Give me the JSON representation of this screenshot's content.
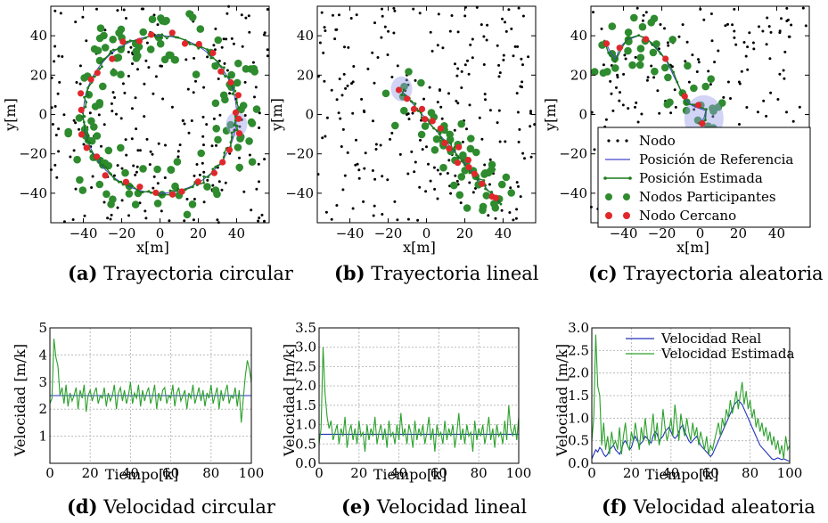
{
  "captions": [
    {
      "tag": "(a)",
      "text": "Trayectoria circular"
    },
    {
      "tag": "(b)",
      "text": "Trayectoria lineal"
    },
    {
      "tag": "(c)",
      "text": "Trayectoria aleatoria"
    },
    {
      "tag": "(d)",
      "text": "Velocidad circular"
    },
    {
      "tag": "(e)",
      "text": "Velocidad lineal"
    },
    {
      "tag": "(f)",
      "text": "Velocidad aleatoria"
    }
  ],
  "colors": {
    "nodo": "#000000",
    "referencia": "#4444cc",
    "estimada": "#1a7a1a",
    "participantes": "#2e8b2e",
    "cercano": "#e0282c",
    "vel_real": "#2233bb",
    "vel_estimada": "#2ca02c",
    "grid": "#bbbbbb"
  },
  "chart_data": [
    {
      "type": "scatter",
      "xlabel": "x[m]",
      "ylabel": "y[m]",
      "xlim": [
        -57,
        57
      ],
      "ylim": [
        -55,
        55
      ],
      "xticks": [
        -40,
        -20,
        0,
        20,
        40
      ],
      "yticks": [
        -40,
        -20,
        0,
        20,
        40
      ],
      "trajectory": "circle",
      "radius": 40,
      "center": [
        0,
        0
      ],
      "nodes_visible_count": 330
    },
    {
      "type": "scatter",
      "xlabel": "x[m]",
      "ylabel": "y[m]",
      "xlim": [
        -57,
        57
      ],
      "ylim": [
        -55,
        55
      ],
      "xticks": [
        -40,
        -20,
        0,
        20,
        40
      ],
      "yticks": [
        -40,
        -20,
        0,
        20,
        40
      ],
      "trajectory": "line",
      "line_start": [
        -13,
        12
      ],
      "line_end": [
        38,
        -45
      ]
    },
    {
      "type": "scatter",
      "xlabel": "x[m]",
      "ylabel": "y[m]",
      "xlim": [
        -57,
        57
      ],
      "ylim": [
        -55,
        55
      ],
      "xticks": [
        -40,
        -20,
        0,
        20,
        40
      ],
      "yticks": [
        -40,
        -20,
        0,
        20,
        40
      ],
      "trajectory": "random",
      "path": [
        [
          -50,
          38
        ],
        [
          -47,
          32
        ],
        [
          -44,
          28
        ],
        [
          -42,
          34
        ],
        [
          -38,
          38
        ],
        [
          -32,
          40
        ],
        [
          -28,
          39
        ],
        [
          -25,
          36
        ],
        [
          -21,
          32
        ],
        [
          -18,
          28
        ],
        [
          -15,
          22
        ],
        [
          -12,
          16
        ],
        [
          -9,
          10
        ],
        [
          -6,
          6
        ],
        [
          -3,
          4
        ],
        [
          0,
          3
        ],
        [
          3,
          2
        ],
        [
          2,
          -2
        ],
        [
          0,
          -4
        ]
      ],
      "legend": {
        "position": "lower-right",
        "entries": [
          {
            "label": "Nodo",
            "marker": "dot"
          },
          {
            "label": "Posición de Referencia",
            "marker": "line"
          },
          {
            "label": "Posición Estimada",
            "marker": "line-dot"
          },
          {
            "label": "Nodos Participantes",
            "marker": "circle-green"
          },
          {
            "label": "Nodo Cercano",
            "marker": "circle-red"
          }
        ]
      }
    },
    {
      "type": "line",
      "xlabel": "Tiempo[k]",
      "ylabel": "Velocidad [m/k]",
      "xlim": [
        0,
        100
      ],
      "ylim": [
        0,
        5
      ],
      "xticks": [
        0,
        20,
        40,
        60,
        80,
        100
      ],
      "yticks": [
        1,
        2,
        3,
        4,
        5
      ],
      "x": [
        0,
        1,
        2,
        3,
        4,
        5,
        6,
        7,
        8,
        9,
        10,
        11,
        12,
        13,
        14,
        15,
        16,
        17,
        18,
        19,
        20,
        21,
        22,
        23,
        24,
        25,
        26,
        27,
        28,
        29,
        30,
        31,
        32,
        33,
        34,
        35,
        36,
        37,
        38,
        39,
        40,
        41,
        42,
        43,
        44,
        45,
        46,
        47,
        48,
        49,
        50,
        51,
        52,
        53,
        54,
        55,
        56,
        57,
        58,
        59,
        60,
        61,
        62,
        63,
        64,
        65,
        66,
        67,
        68,
        69,
        70,
        71,
        72,
        73,
        74,
        75,
        76,
        77,
        78,
        79,
        80,
        81,
        82,
        83,
        84,
        85,
        86,
        87,
        88,
        89,
        90,
        91,
        92,
        93,
        94,
        95,
        96,
        97,
        98,
        99,
        100
      ],
      "series": [
        {
          "name": "Velocidad Real",
          "values_constant": 2.5
        },
        {
          "name": "Velocidad Estimada",
          "values": [
            2.2,
            2.4,
            4.6,
            3.9,
            3.6,
            2.5,
            2.8,
            2.2,
            2.9,
            2.1,
            2.6,
            2.3,
            2.5,
            2.8,
            2.0,
            2.7,
            2.4,
            2.9,
            1.9,
            2.5,
            2.7,
            2.3,
            2.6,
            2.8,
            2.2,
            2.5,
            2.4,
            2.8,
            2.1,
            2.6,
            2.3,
            2.5,
            2.9,
            2.0,
            2.6,
            2.8,
            2.3,
            2.7,
            2.2,
            2.5,
            3.0,
            2.2,
            2.6,
            2.4,
            2.9,
            2.1,
            2.7,
            2.3,
            2.6,
            2.8,
            2.2,
            2.5,
            2.9,
            2.0,
            2.6,
            2.3,
            2.7,
            2.8,
            2.2,
            2.5,
            2.4,
            2.9,
            2.1,
            2.6,
            2.8,
            2.3,
            2.5,
            2.7,
            2.0,
            2.6,
            2.4,
            2.9,
            2.2,
            2.5,
            2.8,
            2.3,
            2.7,
            2.1,
            2.6,
            2.4,
            2.9,
            2.2,
            2.5,
            2.8,
            2.0,
            2.7,
            2.3,
            2.6,
            2.9,
            2.2,
            2.5,
            2.4,
            2.8,
            2.1,
            2.7,
            1.5,
            2.4,
            3.2,
            3.8,
            3.5,
            3.0
          ]
        }
      ]
    },
    {
      "type": "line",
      "xlabel": "Tiempo[k]",
      "ylabel": "Velocidad [m/k]",
      "xlim": [
        0,
        100
      ],
      "ylim": [
        0,
        3.5
      ],
      "xticks": [
        0,
        20,
        40,
        60,
        80,
        100
      ],
      "yticks": [
        0.0,
        0.5,
        1.0,
        1.5,
        2.0,
        2.5,
        3.0,
        3.5
      ],
      "series": [
        {
          "name": "Velocidad Real",
          "values_constant": 0.75
        },
        {
          "name": "Velocidad Estimada",
          "values": [
            0.5,
            0.9,
            3.0,
            1.8,
            1.2,
            0.9,
            1.1,
            0.6,
            0.8,
            1.0,
            0.5,
            0.9,
            0.7,
            1.2,
            0.4,
            0.8,
            1.0,
            0.6,
            0.9,
            0.5,
            1.1,
            0.7,
            0.8,
            0.3,
            1.0,
            0.6,
            0.9,
            0.7,
            1.2,
            0.5,
            0.8,
            1.0,
            0.6,
            0.9,
            0.4,
            1.1,
            0.7,
            0.8,
            0.5,
            1.0,
            0.6,
            1.3,
            0.7,
            0.9,
            0.5,
            1.0,
            0.8,
            0.4,
            1.1,
            0.6,
            0.9,
            0.7,
            1.0,
            0.5,
            0.8,
            1.2,
            0.6,
            0.9,
            0.3,
            1.0,
            0.7,
            0.8,
            0.5,
            1.1,
            0.6,
            0.9,
            0.7,
            1.0,
            0.4,
            0.8,
            1.3,
            0.6,
            0.9,
            0.5,
            1.0,
            0.7,
            0.8,
            0.3,
            1.1,
            0.6,
            0.9,
            0.7,
            1.0,
            0.5,
            0.8,
            1.2,
            0.6,
            0.9,
            0.4,
            1.0,
            0.7,
            0.8,
            0.5,
            1.1,
            0.6,
            1.5,
            0.9,
            0.7,
            1.0,
            0.6,
            1.2
          ]
        }
      ]
    },
    {
      "type": "line",
      "xlabel": "Tiempo[k]",
      "ylabel": "Velocidad [m/k]",
      "xlim": [
        0,
        100
      ],
      "ylim": [
        0,
        3.0
      ],
      "xticks": [
        0,
        20,
        40,
        60,
        80,
        100
      ],
      "yticks": [
        0.0,
        0.5,
        1.0,
        1.5,
        2.0,
        2.5,
        3.0
      ],
      "legend": {
        "position": "top-right",
        "entries": [
          "Velocidad Real",
          "Velocidad Estimada"
        ]
      },
      "series": [
        {
          "name": "Velocidad Real",
          "values": [
            0.1,
            0.2,
            0.3,
            0.25,
            0.35,
            0.3,
            0.2,
            0.15,
            0.2,
            0.3,
            0.35,
            0.4,
            0.3,
            0.25,
            0.2,
            0.3,
            0.45,
            0.5,
            0.4,
            0.3,
            0.35,
            0.5,
            0.6,
            0.5,
            0.4,
            0.45,
            0.5,
            0.6,
            0.55,
            0.5,
            0.45,
            0.6,
            0.7,
            0.65,
            0.5,
            0.55,
            0.6,
            0.7,
            0.75,
            0.8,
            0.7,
            0.6,
            0.55,
            0.6,
            0.7,
            0.8,
            0.85,
            0.7,
            0.6,
            0.5,
            0.45,
            0.5,
            0.55,
            0.6,
            0.5,
            0.4,
            0.35,
            0.3,
            0.25,
            0.2,
            0.15,
            0.2,
            0.3,
            0.4,
            0.5,
            0.6,
            0.7,
            0.8,
            0.9,
            1.0,
            1.1,
            1.2,
            1.3,
            1.35,
            1.4,
            1.35,
            1.3,
            1.2,
            1.1,
            1.0,
            0.9,
            0.8,
            0.7,
            0.6,
            0.5,
            0.4,
            0.35,
            0.3,
            0.25,
            0.2,
            0.15,
            0.1,
            0.08,
            0.1,
            0.12,
            0.1,
            0.08,
            0.1,
            0.08,
            0.06,
            0.05
          ]
        },
        {
          "name": "Velocidad Estimada",
          "values": [
            0.5,
            1.0,
            2.85,
            1.7,
            1.5,
            0.4,
            0.9,
            0.3,
            0.6,
            0.2,
            0.7,
            0.4,
            0.5,
            0.3,
            0.8,
            0.2,
            0.6,
            0.9,
            0.4,
            0.3,
            0.7,
            0.5,
            0.9,
            0.6,
            0.3,
            0.8,
            0.5,
            1.0,
            0.6,
            0.4,
            0.7,
            1.1,
            0.5,
            0.9,
            0.4,
            0.6,
            1.2,
            0.8,
            0.5,
            0.7,
            1.0,
            0.6,
            1.3,
            0.9,
            0.5,
            1.1,
            0.8,
            0.6,
            1.0,
            0.7,
            0.5,
            0.9,
            0.6,
            0.8,
            0.4,
            0.7,
            0.5,
            0.3,
            0.6,
            0.2,
            0.4,
            0.3,
            0.5,
            0.7,
            0.9,
            0.6,
            1.0,
            0.8,
            1.2,
            1.0,
            1.4,
            1.1,
            1.3,
            1.6,
            1.2,
            1.5,
            1.8,
            1.3,
            1.6,
            1.2,
            1.4,
            1.0,
            1.2,
            0.8,
            1.0,
            0.7,
            0.9,
            0.6,
            0.8,
            0.5,
            0.7,
            0.4,
            0.6,
            0.3,
            0.5,
            0.2,
            0.4,
            0.1,
            0.6,
            0.3,
            0.4
          ]
        }
      ]
    }
  ]
}
